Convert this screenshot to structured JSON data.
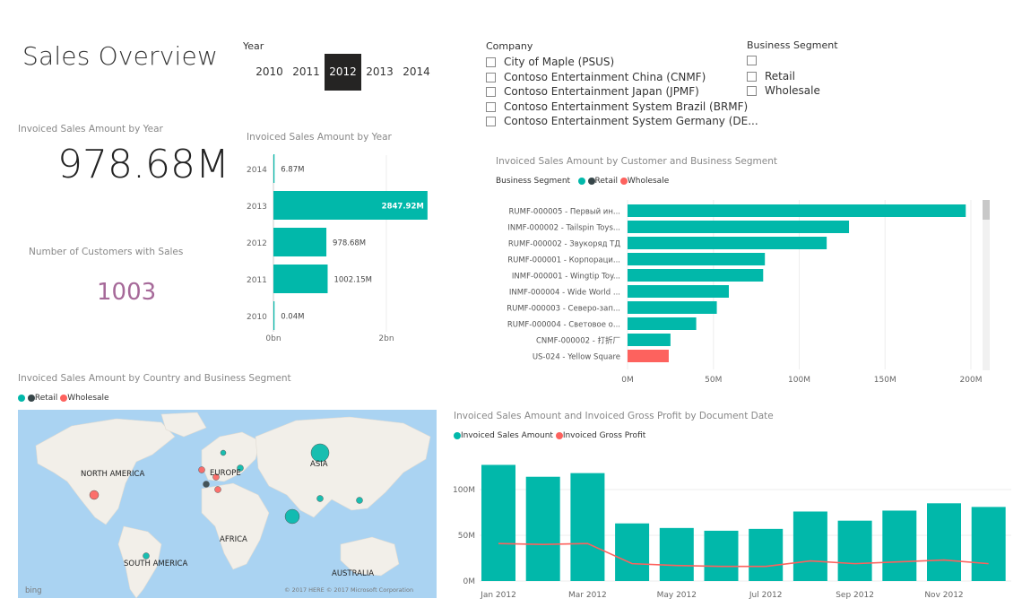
{
  "page_title": "Sales Overview",
  "year_slicer": {
    "label": "Year",
    "years": [
      "2010",
      "2011",
      "2012",
      "2013",
      "2014"
    ],
    "selected": "2012"
  },
  "company_slicer": {
    "label": "Company",
    "items": [
      "City of Maple (PSUS)",
      "Contoso Entertainment China (CNMF)",
      "Contoso Entertainment Japan (JPMF)",
      "Contoso Entertainment System Brazil (BRMF)",
      "Contoso Entertainment System Germany (DE..."
    ]
  },
  "segment_slicer": {
    "label": "Business Segment",
    "items": [
      "",
      "Retail",
      "Wholesale"
    ]
  },
  "card_sales": {
    "label": "Invoiced Sales Amount by Year",
    "value": "978.68M"
  },
  "card_customers": {
    "label": "Number of Customers with Sales",
    "value": "1003"
  },
  "colors": {
    "teal": "#01b8aa",
    "dark": "#374649",
    "red": "#fd625e",
    "purple": "#a66999",
    "selected_bg": "#252423"
  },
  "chart_year": {
    "title": "Invoiced Sales Amount by Year",
    "x_ticks": [
      "0bn",
      "2bn"
    ]
  },
  "chart_customer": {
    "title": "Invoiced Sales Amount by Customer and Business Segment",
    "legend_title": "Business Segment",
    "legend": [
      "Retail",
      "Wholesale"
    ],
    "x_ticks": [
      "0M",
      "50M",
      "100M",
      "150M",
      "200M"
    ]
  },
  "map": {
    "title": "Invoiced Sales Amount by Country and Business Segment",
    "legend": [
      "Retail",
      "Wholesale"
    ],
    "labels": [
      "NORTH AMERICA",
      "EUROPE",
      "ASIA",
      "AFRICA",
      "SOUTH AMERICA",
      "AUSTRALIA"
    ],
    "bing": "bing",
    "copyright": "© 2017 HERE   © 2017 Microsoft Corporation"
  },
  "chart_date": {
    "title": "Invoiced Sales Amount and Invoiced Gross Profit by Document Date",
    "legend": [
      "Invoiced Sales Amount",
      "Invoiced Gross Profit"
    ],
    "y_ticks": [
      "100M",
      "50M",
      "0M"
    ],
    "x_ticks": [
      "Jan 2012",
      "Mar 2012",
      "May 2012",
      "Jul 2012",
      "Sep 2012",
      "Nov 2012"
    ]
  },
  "chart_data": [
    {
      "type": "bar",
      "title": "Invoiced Sales Amount by Year",
      "categories": [
        "2014",
        "2013",
        "2012",
        "2011",
        "2010"
      ],
      "values": [
        6.87,
        2847.92,
        978.68,
        1002.15,
        0.04
      ],
      "value_labels": [
        "6.87M",
        "2847.92M",
        "978.68M",
        "1002.15M",
        "0.04M"
      ],
      "unit": "M",
      "xlim": [
        0,
        2900
      ]
    },
    {
      "type": "bar",
      "title": "Invoiced Sales Amount by Customer and Business Segment",
      "categories": [
        "RUMF-000005 - Первый ин...",
        "INMF-000002 - Tailspin Toys...",
        "RUMF-000002 - Звукоряд ТД",
        "RUMF-000001 - Корпораци...",
        "INMF-000001 - Wingtip Toy...",
        "INMF-000004 - Wide World ...",
        "RUMF-000003 - Северо-зап...",
        "RUMF-000004 - Световое о...",
        "CNMF-000002 - 打折厂",
        "US-024 - Yellow Square"
      ],
      "series": [
        {
          "name": "Retail",
          "values": [
            197,
            129,
            116,
            80,
            79,
            59,
            52,
            40,
            25,
            0
          ]
        },
        {
          "name": "Wholesale",
          "values": [
            0,
            0,
            0,
            0,
            0,
            0,
            0,
            0,
            0,
            24
          ]
        }
      ],
      "xlim": [
        0,
        205
      ]
    },
    {
      "type": "line",
      "title": "Invoiced Sales Amount and Invoiced Gross Profit by Document Date",
      "categories": [
        "Jan 2012",
        "Feb 2012",
        "Mar 2012",
        "Apr 2012",
        "May 2012",
        "Jun 2012",
        "Jul 2012",
        "Aug 2012",
        "Sep 2012",
        "Oct 2012",
        "Nov 2012",
        "Dec 2012"
      ],
      "series": [
        {
          "name": "Invoiced Sales Amount",
          "chart": "bar",
          "values": [
            127,
            114,
            118,
            63,
            58,
            55,
            57,
            76,
            66,
            77,
            85,
            81
          ]
        },
        {
          "name": "Invoiced Gross Profit",
          "chart": "line",
          "values": [
            41,
            40,
            41,
            19,
            17,
            16,
            16,
            22,
            19,
            21,
            23,
            19
          ]
        }
      ],
      "ylim": [
        0,
        130
      ]
    }
  ]
}
